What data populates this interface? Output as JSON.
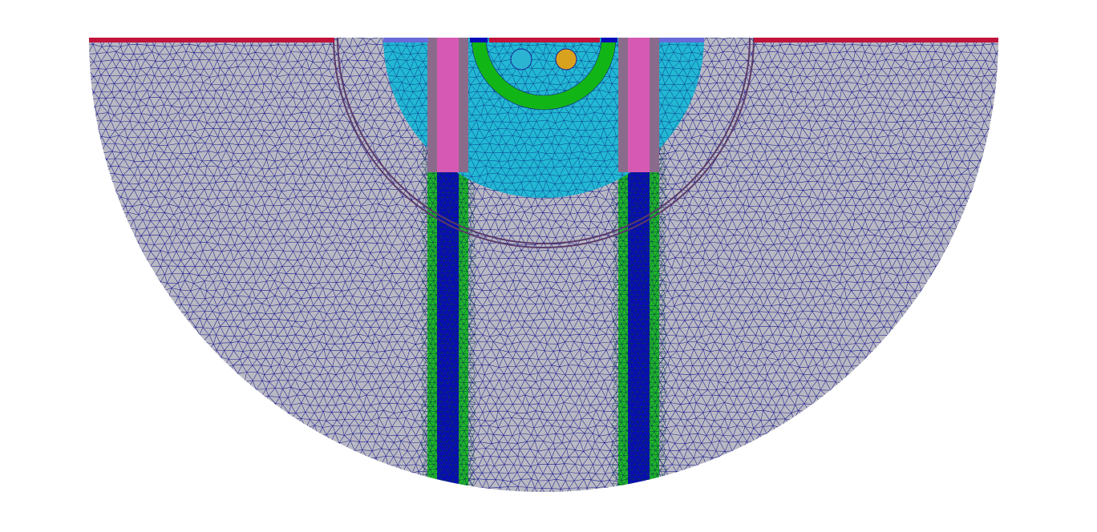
{
  "view": {
    "background": "#ffffff"
  },
  "mesh": {
    "edge_color": "#1b1b8f",
    "regions": {
      "outer_domain": "#b9b9c3",
      "surface_layer": "#c0143c",
      "cyan_core": "#22b8d4",
      "green_ring": "#12b516",
      "left_conduit": "#0a0ab9",
      "right_conduit": "#0a0ab9",
      "conduit_lining": "#1fb52a",
      "magenta_segment": "#d65ab4",
      "grey_segment": "#8b6b8b",
      "small_circle_left": "#2bb3d2",
      "small_circle_right": "#d8a21e",
      "boundary_ring": "#5a3a6a"
    }
  }
}
